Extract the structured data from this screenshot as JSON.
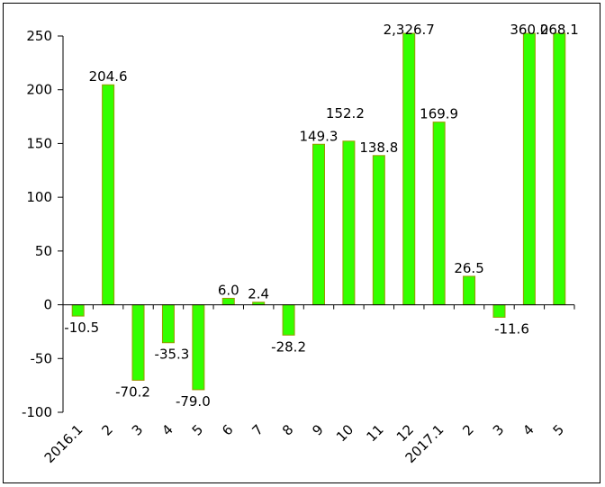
{
  "chart_data": {
    "type": "bar",
    "title": "",
    "xlabel": "",
    "ylabel": "",
    "ylim": [
      -100,
      250
    ],
    "yticks": [
      250,
      200,
      150,
      100,
      50,
      0,
      -50,
      -100
    ],
    "ytick_labels": [
      "250",
      "200",
      "150",
      "100",
      "50",
      "0",
      "-50",
      "-100"
    ],
    "categories": [
      "2016.1",
      "2",
      "3",
      "4",
      "5",
      "6",
      "7",
      "8",
      "9",
      "10",
      "11",
      "12",
      "2017.1",
      "2",
      "3",
      "4",
      "5"
    ],
    "values": [
      -10.5,
      204.6,
      -70.2,
      -35.3,
      -79.0,
      6.0,
      2.4,
      -28.2,
      149.3,
      152.2,
      138.8,
      2326.7,
      169.9,
      26.5,
      -11.6,
      360.0,
      268.1
    ],
    "data_labels": [
      "-10.5",
      "204.6",
      "-70.2",
      "-35.3",
      "-79.0",
      "6.0",
      "2.4",
      "-28.2",
      "149.3",
      "152.2",
      "138.8",
      "2,326.7",
      "169.9",
      "26.5",
      "-11.6",
      "360.0",
      "268.1"
    ],
    "bar_color": "#33ff00",
    "bar_edge_color": "#999900",
    "grid": false,
    "legend": "none"
  }
}
